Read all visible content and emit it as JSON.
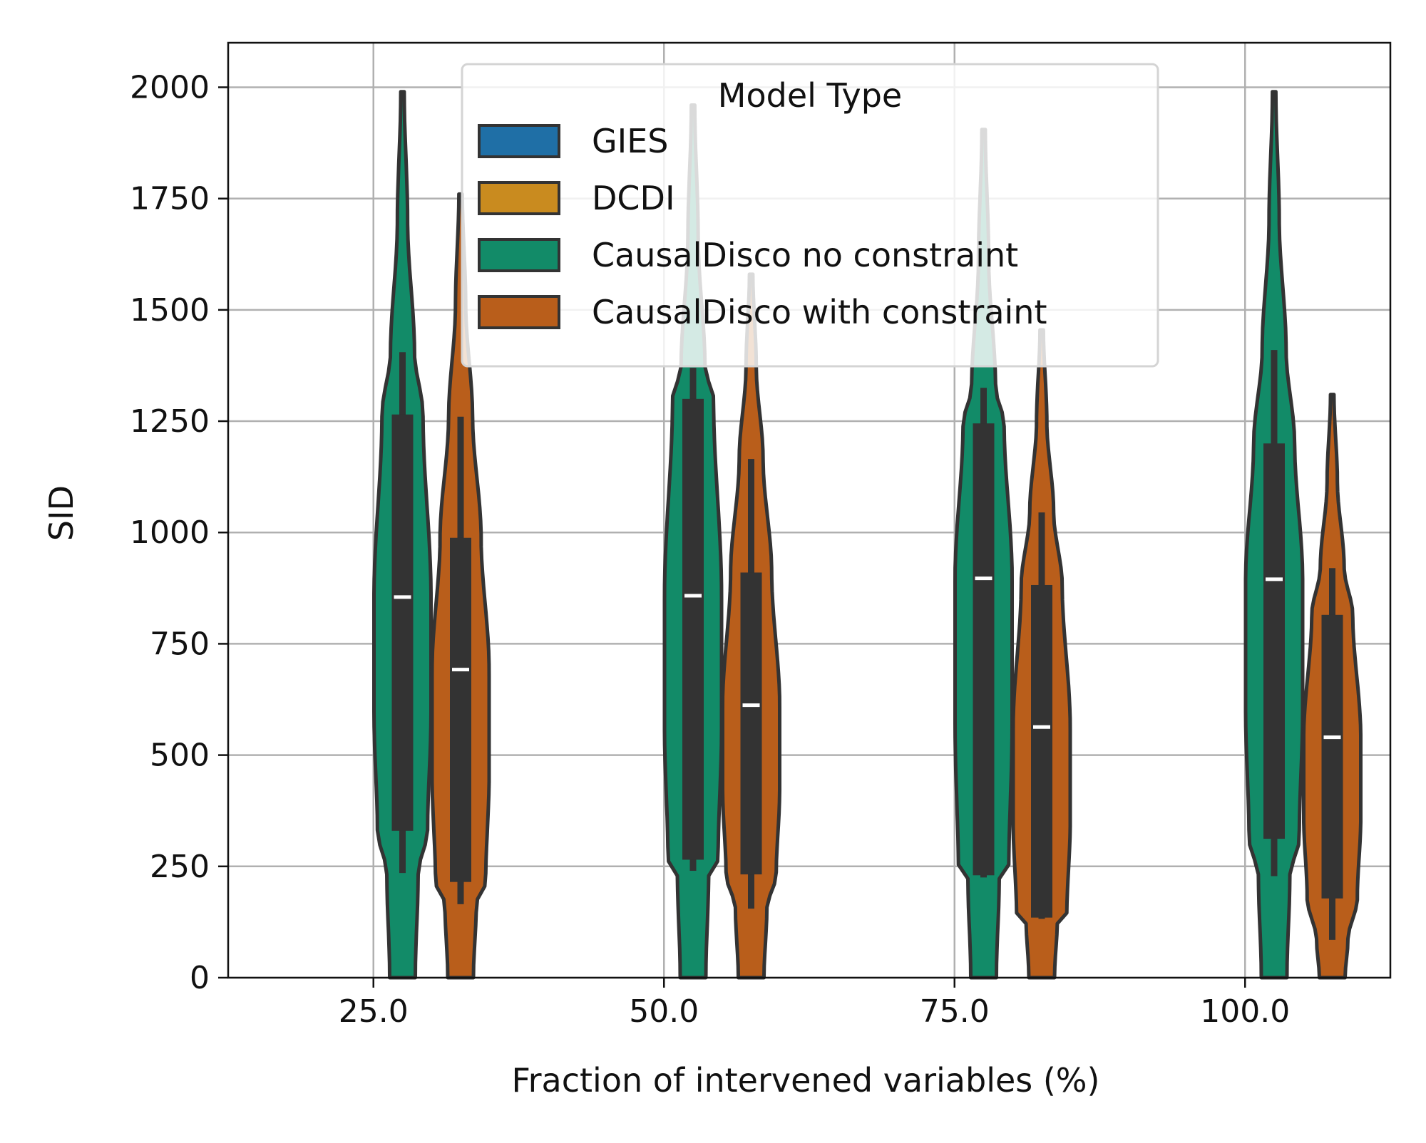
{
  "chart_data": {
    "type": "violin",
    "title": "",
    "xlabel": "Fraction of intervened variables (%)",
    "ylabel": "SID",
    "ylim": [
      0,
      2100
    ],
    "xlim": [
      12.5,
      112.5
    ],
    "grid": true,
    "categories": [
      25.0,
      50.0,
      75.0,
      100.0
    ],
    "category_labels": [
      "25.0",
      "50.0",
      "75.0",
      "100.0"
    ],
    "y_ticks": [
      0,
      250,
      500,
      750,
      1000,
      1250,
      1500,
      1750,
      2000
    ],
    "y_tick_labels": [
      "0",
      "250",
      "500",
      "750",
      "1000",
      "1250",
      "1500",
      "1750",
      "2000"
    ],
    "legend": {
      "title": "Model Type",
      "placement": "top-center",
      "entries": [
        {
          "label": "GIES",
          "color": "#1f6fa6"
        },
        {
          "label": "DCDI",
          "color": "#c98b1f"
        },
        {
          "label": "CausalDisco no constraint",
          "color": "#128b68"
        },
        {
          "label": "CausalDisco with constraint",
          "color": "#b95e1b"
        }
      ]
    },
    "series": [
      {
        "name": "CausalDisco no constraint",
        "color": "#128b68",
        "offset": 2.5,
        "violins": [
          {
            "x": 25.0,
            "min": 235,
            "q1": 330,
            "median": 855,
            "q3": 1265,
            "max": 1405,
            "top": 1990,
            "bottom": 0
          },
          {
            "x": 50.0,
            "min": 240,
            "q1": 265,
            "median": 858,
            "q3": 1300,
            "max": 1370,
            "top": 1960,
            "bottom": 0
          },
          {
            "x": 75.0,
            "min": 225,
            "q1": 230,
            "median": 897,
            "q3": 1245,
            "max": 1325,
            "top": 1905,
            "bottom": 0
          },
          {
            "x": 100.0,
            "min": 228,
            "q1": 312,
            "median": 895,
            "q3": 1200,
            "max": 1410,
            "top": 1990,
            "bottom": 0
          }
        ]
      },
      {
        "name": "CausalDisco with constraint",
        "color": "#b95e1b",
        "offset": 7.5,
        "violins": [
          {
            "x": 25.0,
            "min": 165,
            "q1": 215,
            "median": 692,
            "q3": 988,
            "max": 1260,
            "top": 1760,
            "bottom": 0
          },
          {
            "x": 50.0,
            "min": 155,
            "q1": 232,
            "median": 612,
            "q3": 910,
            "max": 1165,
            "top": 1580,
            "bottom": 0
          },
          {
            "x": 75.0,
            "min": 132,
            "q1": 135,
            "median": 563,
            "q3": 882,
            "max": 1045,
            "top": 1455,
            "bottom": 0
          },
          {
            "x": 100.0,
            "min": 85,
            "q1": 178,
            "median": 540,
            "q3": 815,
            "max": 920,
            "top": 1310,
            "bottom": 0
          }
        ]
      }
    ]
  }
}
